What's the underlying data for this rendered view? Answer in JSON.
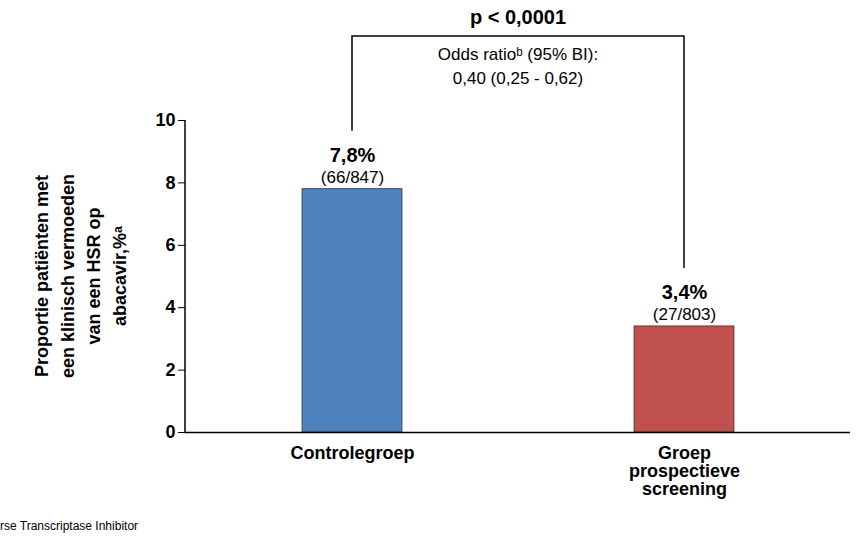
{
  "chart_data": {
    "type": "bar",
    "categories": [
      "Controlegroep",
      "Groep\nprospectieve\nscreening"
    ],
    "values": [
      7.8,
      3.4
    ],
    "value_labels": [
      "7,8%",
      "3,4%"
    ],
    "count_labels": [
      "(66/847)",
      "(27/803)"
    ],
    "colors": [
      "#4f81bd",
      "#c0504d"
    ],
    "ylim": [
      0,
      10
    ],
    "yticks": [
      0,
      2,
      4,
      6,
      8,
      10
    ],
    "y_label": "Proportie patiënten met\neen klinisch vermoeden\nvan een HSR op\nabacavir,%ᵃ",
    "comparison": {
      "p_value": "p < 0,0001",
      "odds_ratio": "Odds ratioᵇ (95% BI):\n0,40 (0,25 - 0,62)"
    },
    "footnote": "TI, Non-Nucleoside Reverse Transcriptase Inhibitor",
    "data_labels": true,
    "grid": false
  }
}
